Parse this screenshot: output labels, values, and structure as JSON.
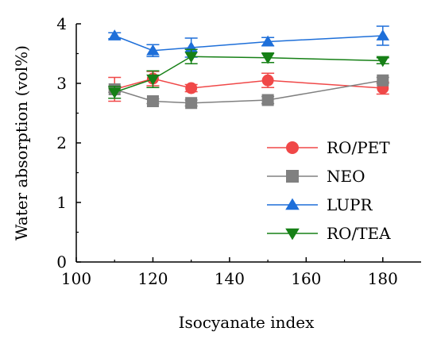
{
  "chart_data": {
    "type": "line",
    "xlabel": "Isocyanate index",
    "ylabel": "Water absorption (vol%)",
    "xlim": [
      100,
      190
    ],
    "ylim": [
      0,
      4
    ],
    "xticks": [
      100,
      120,
      140,
      160,
      180
    ],
    "yticks": [
      0,
      1,
      2,
      3,
      4
    ],
    "grid": false,
    "legend_position": "lower-right",
    "x": [
      110,
      120,
      130,
      150,
      180
    ],
    "series": [
      {
        "name": "RO/PET",
        "color": "#f04848",
        "marker": "circle",
        "values": [
          2.9,
          3.08,
          2.92,
          3.05,
          2.92
        ],
        "errors": [
          0.2,
          0.12,
          0.06,
          0.12,
          0.1
        ]
      },
      {
        "name": "NEO",
        "color": "#808080",
        "marker": "square",
        "values": [
          2.9,
          2.7,
          2.67,
          2.72,
          3.05
        ],
        "errors": [
          0.05,
          0.04,
          0.05,
          0.06,
          0.05
        ]
      },
      {
        "name": "LUPR",
        "color": "#1e6fd9",
        "marker": "triangle-up",
        "values": [
          3.8,
          3.55,
          3.6,
          3.7,
          3.8
        ],
        "errors": [
          0.05,
          0.1,
          0.16,
          0.07,
          0.16
        ]
      },
      {
        "name": "RO/TEA",
        "color": "#168016",
        "marker": "triangle-down",
        "values": [
          2.85,
          3.07,
          3.45,
          3.43,
          3.38
        ],
        "errors": [
          0.1,
          0.14,
          0.12,
          0.08,
          0.05
        ]
      }
    ]
  }
}
